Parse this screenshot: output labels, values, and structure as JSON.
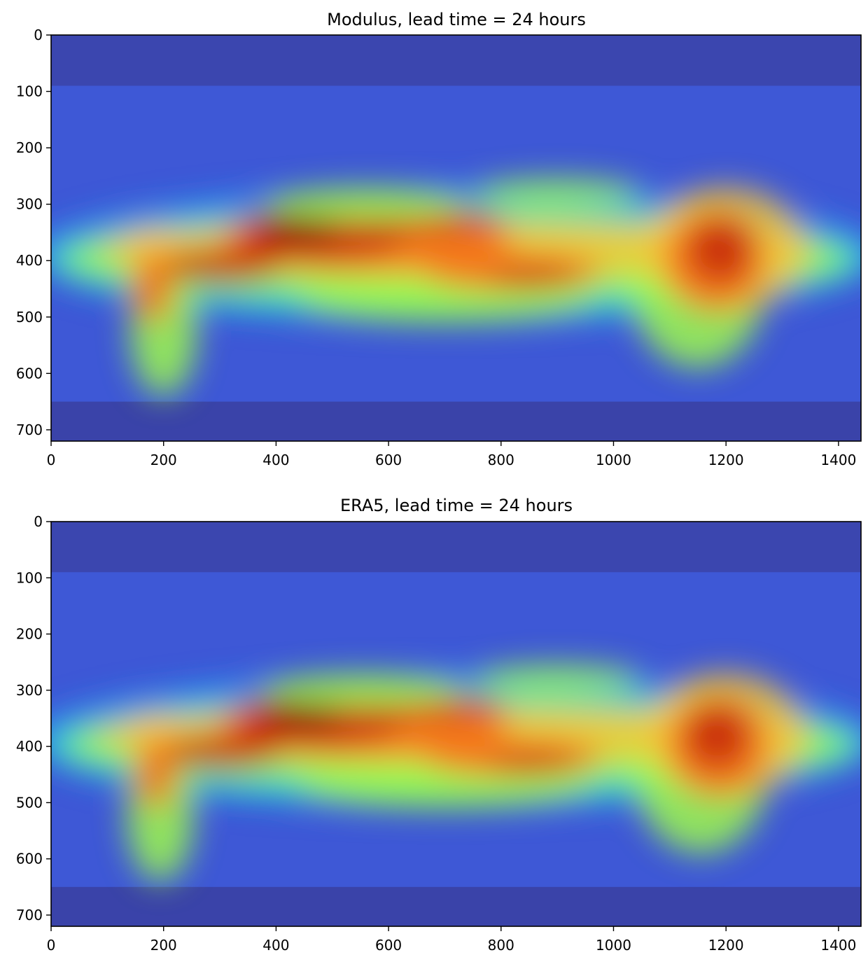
{
  "chart_data": [
    {
      "type": "heatmap",
      "title": "Modulus, lead time = 24 hours",
      "xlabel": "",
      "ylabel": "",
      "xlim": [
        0,
        1440
      ],
      "ylim": [
        720,
        0
      ],
      "xticks": [
        0,
        200,
        400,
        600,
        800,
        1000,
        1200,
        1400
      ],
      "yticks": [
        0,
        100,
        200,
        300,
        400,
        500,
        600,
        700
      ],
      "grid": false,
      "colormap": "turbo",
      "colors": [
        "#30123b",
        "#3e58d6",
        "#28a0f0",
        "#1ae4b6",
        "#9efa4b",
        "#f5c63a",
        "#f86d1a",
        "#c42503",
        "#7a0403"
      ]
    },
    {
      "type": "heatmap",
      "title": "ERA5, lead time = 24 hours",
      "xlabel": "",
      "ylabel": "",
      "xlim": [
        0,
        1440
      ],
      "ylim": [
        720,
        0
      ],
      "xticks": [
        0,
        200,
        400,
        600,
        800,
        1000,
        1200,
        1400
      ],
      "yticks": [
        0,
        100,
        200,
        300,
        400,
        500,
        600,
        700
      ],
      "grid": false,
      "colormap": "turbo",
      "colors": [
        "#30123b",
        "#3e58d6",
        "#28a0f0",
        "#1ae4b6",
        "#9efa4b",
        "#f5c63a",
        "#f86d1a",
        "#c42503",
        "#7a0403"
      ]
    }
  ]
}
